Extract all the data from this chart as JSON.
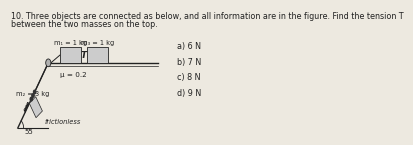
{
  "title_line1": "10. Three objects are connected as below, and all information are in the figure. Find the tension T",
  "title_line2": "between the two masses on the top.",
  "label_m_left": "m₁ = 1 kg",
  "label_m_right": "m₃ = 1 kg",
  "label_T": "T",
  "label_mu": "μ = 0.2",
  "label_m1": "m₂ = 3 kg",
  "label_frictionless": "frictionless",
  "label_angle": "55",
  "answers": [
    "a) 6 N",
    "b) 7 N",
    "c) 8 N",
    "d) 9 N"
  ],
  "bg_color": "#ede9e0",
  "text_color": "#222222",
  "block_color": "#cccccc",
  "slope_color": "#888888"
}
